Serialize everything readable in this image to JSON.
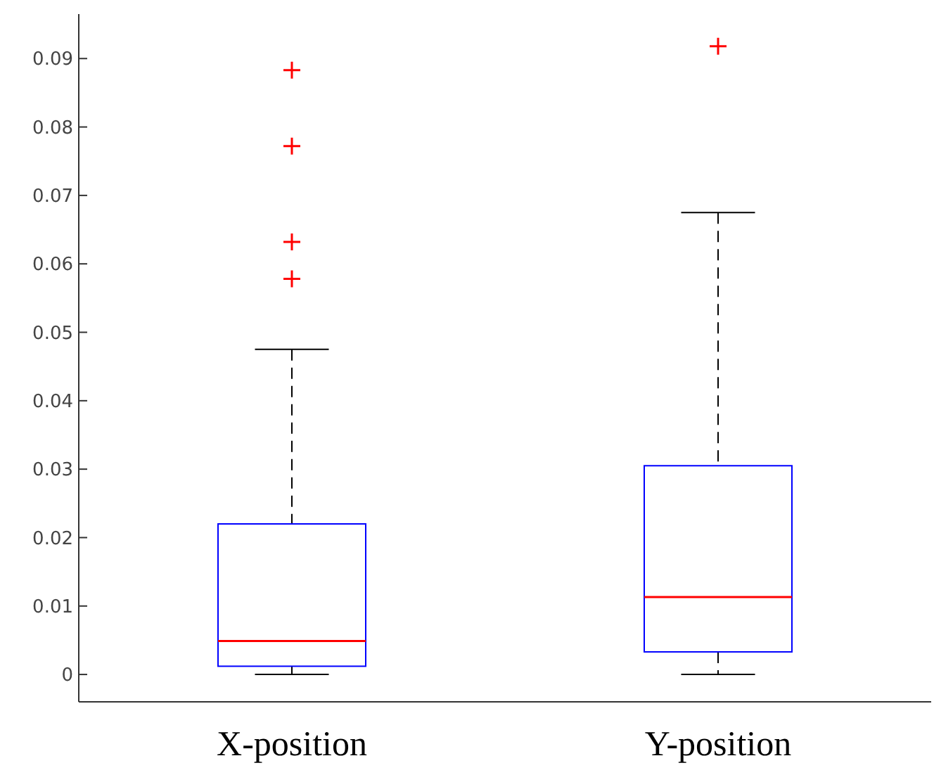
{
  "chart_data": {
    "type": "box",
    "categories": [
      "X-position",
      "Y-position"
    ],
    "color": "#0000ff",
    "ylim": [
      -0.004,
      0.0965
    ],
    "yticks": [
      0,
      0.01,
      0.02,
      0.03,
      0.04,
      0.05,
      0.06,
      0.07,
      0.08,
      0.09
    ],
    "grid": false,
    "boxes": [
      {
        "low": 0,
        "q1": 0.0012,
        "median": 0.0049,
        "q3": 0.022,
        "high": 0.0475,
        "outliers": [
          0.0578,
          0.0632,
          0.0772,
          0.0883
        ]
      },
      {
        "low": 0,
        "q1": 0.0033,
        "median": 0.0113,
        "q3": 0.0305,
        "high": 0.0675,
        "outliers": [
          0.0918
        ]
      }
    ]
  }
}
